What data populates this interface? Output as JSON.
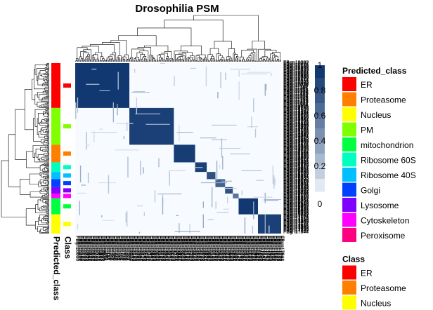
{
  "chart_data": {
    "type": "heatmap",
    "title": "Drosophilia PSM",
    "clusters": [
      {
        "label": "ER",
        "size": 56,
        "within": 0.95,
        "color": "#FF0000"
      },
      {
        "label": "PM",
        "size": 46,
        "within": 0.9,
        "color": "#80FF00"
      },
      {
        "label": "Proteasome",
        "size": 22,
        "within": 0.92,
        "color": "#FF8000"
      },
      {
        "label": "Ribosome 60S",
        "size": 12,
        "within": 0.9,
        "color": "#00FFBF"
      },
      {
        "label": "Ribosome 40S",
        "size": 9,
        "within": 0.8,
        "color": "#00BFFF"
      },
      {
        "label": "Golgi",
        "size": 10,
        "within": 0.7,
        "color": "#0040FF"
      },
      {
        "label": "Lysosome",
        "size": 8,
        "within": 0.8,
        "color": "#8000FF"
      },
      {
        "label": "Cytoskeleton",
        "size": 6,
        "within": 0.6,
        "color": "#FF00FF"
      },
      {
        "label": "mitochondrion",
        "size": 20,
        "within": 0.95,
        "color": "#00FF40"
      },
      {
        "label": "Nucleus",
        "size": 24,
        "within": 0.9,
        "color": "#FFFF00"
      }
    ],
    "colorbar": {
      "min": 0,
      "max": 1,
      "ticks": [
        "0",
        "0.2",
        "0.4",
        "0.6",
        "0.8",
        "1"
      ]
    },
    "annotation_tracks": [
      "Class",
      "Predicted_class"
    ],
    "legends": [
      {
        "title": "Predicted_class",
        "items": [
          {
            "label": "ER",
            "color": "#FF0000"
          },
          {
            "label": "Proteasome",
            "color": "#FF8000"
          },
          {
            "label": "Nucleus",
            "color": "#FFFF00"
          },
          {
            "label": "PM",
            "color": "#80FF00"
          },
          {
            "label": "mitochondrion",
            "color": "#00FF40"
          },
          {
            "label": "Ribosome 60S",
            "color": "#00FFBF"
          },
          {
            "label": "Ribosome 40S",
            "color": "#00BFFF"
          },
          {
            "label": "Golgi",
            "color": "#0040FF"
          },
          {
            "label": "Lysosome",
            "color": "#8000FF"
          },
          {
            "label": "Cytoskeleton",
            "color": "#FF00FF"
          },
          {
            "label": "Peroxisome",
            "color": "#FF0080"
          }
        ]
      },
      {
        "title": "Class",
        "items": [
          {
            "label": "ER",
            "color": "#FF0000"
          },
          {
            "label": "Proteasome",
            "color": "#FF8000"
          },
          {
            "label": "Nucleus",
            "color": "#FFFF00"
          }
        ]
      }
    ]
  },
  "colors": {
    "high": "#08306B",
    "low": "#F7FBFF",
    "unlabelled_track": "#FFFFFF"
  }
}
